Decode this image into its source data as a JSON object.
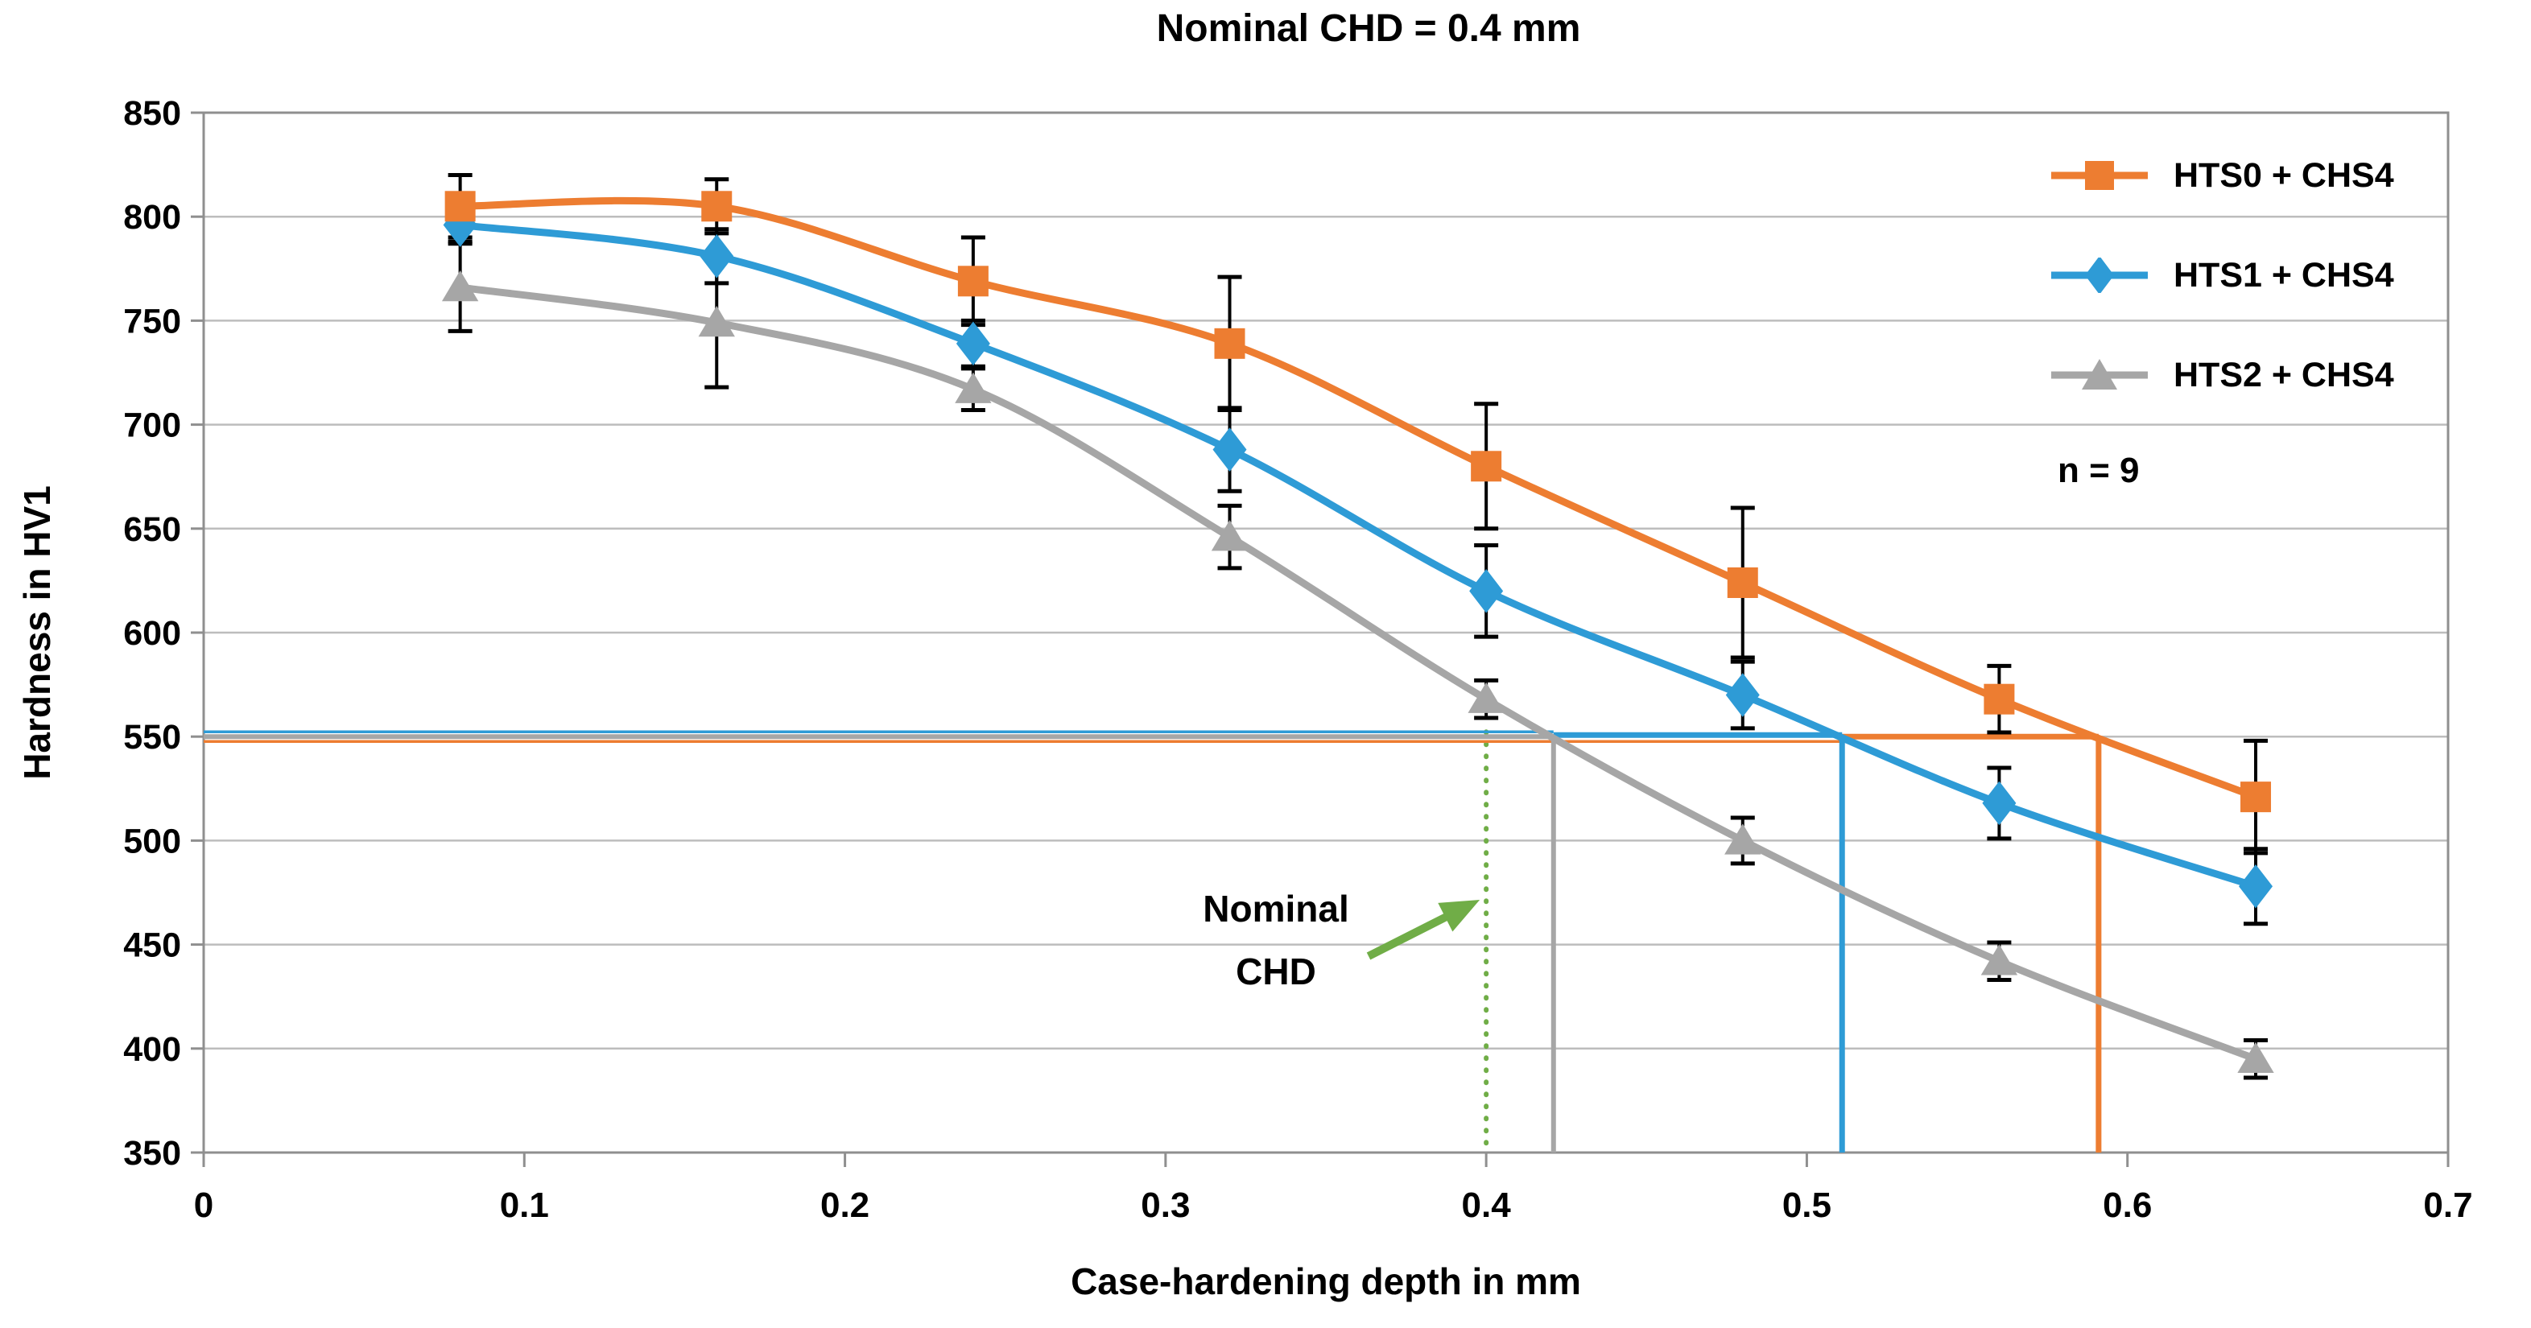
{
  "title": "Nominal CHD = 0.4 mm",
  "chart_data": {
    "type": "line",
    "title": "Nominal CHD = 0.4 mm",
    "xlabel": "Case-hardening depth in mm",
    "ylabel": "Hardness in HV1",
    "xlim": [
      0,
      0.7
    ],
    "ylim": [
      350,
      850
    ],
    "x_ticks": [
      "0",
      "0.1",
      "0.2",
      "0.3",
      "0.4",
      "0.5",
      "0.6",
      "0.7"
    ],
    "y_ticks": [
      350,
      400,
      450,
      500,
      550,
      600,
      650,
      700,
      750,
      800,
      850
    ],
    "grid": "horizontal",
    "legend_position": "top-right",
    "x": [
      0.08,
      0.16,
      0.24,
      0.32,
      0.4,
      0.48,
      0.56,
      0.64
    ],
    "series": [
      {
        "name": "HTS0 + CHS4",
        "color": "#ED7D31",
        "marker": "square",
        "values": [
          805,
          805,
          769,
          739,
          680,
          624,
          568,
          521
        ],
        "errors": [
          15,
          13,
          21,
          32,
          30,
          36,
          16,
          27
        ]
      },
      {
        "name": "HTS1 + CHS4",
        "color": "#2E9BD6",
        "marker": "diamond",
        "values": [
          796,
          781,
          739,
          688,
          620,
          570,
          518,
          478
        ],
        "errors": [
          8,
          13,
          11,
          20,
          22,
          16,
          17,
          18
        ]
      },
      {
        "name": "HTS2 + CHS4",
        "color": "#A6A6A6",
        "marker": "triangle",
        "values": [
          766,
          749,
          717,
          646,
          568,
          500,
          442,
          395
        ],
        "errors": [
          21,
          31,
          10,
          15,
          9,
          11,
          9,
          9
        ]
      }
    ],
    "reference": {
      "hardness_limit": 550,
      "nominal_chd": 0.4,
      "nominal_line_color": "#70AD47",
      "chd_at_limit": {
        "HTS0 + CHS4": 0.591,
        "HTS1 + CHS4": 0.511,
        "HTS2 + CHS4": 0.421
      }
    },
    "error_bar_color": "#000000"
  },
  "annotations": {
    "sample_size": "n = 9",
    "nominal_line1": "Nominal",
    "nominal_line2": "CHD"
  }
}
